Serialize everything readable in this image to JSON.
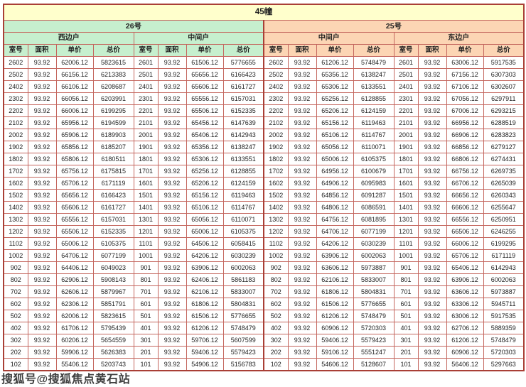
{
  "title": "45幢",
  "watermark": "搜狐号@搜狐焦点黄石站",
  "columns": [
    "室号",
    "面积",
    "单价",
    "总价"
  ],
  "sections": [
    {
      "label": "26号",
      "units": [
        "西边户",
        "中间户"
      ]
    },
    {
      "label": "25号",
      "units": [
        "中间户",
        "东边户"
      ]
    }
  ],
  "colors": {
    "title_bg": "#ffffcc",
    "left_section_bg": "#c6efce",
    "right_section_bg": "#fcd5b4",
    "border": "#c4665e",
    "outer_border": "#a93f36"
  },
  "area": "93.92",
  "rows": [
    [
      [
        "2602",
        "93.92",
        "62006.12",
        "5823615"
      ],
      [
        "2601",
        "93.92",
        "61506.12",
        "5776655"
      ],
      [
        "2602",
        "93.92",
        "61206.12",
        "5748479"
      ],
      [
        "2601",
        "93.92",
        "63006.12",
        "5917535"
      ]
    ],
    [
      [
        "2502",
        "93.92",
        "66156.12",
        "6213383"
      ],
      [
        "2501",
        "93.92",
        "65656.12",
        "6166423"
      ],
      [
        "2502",
        "93.92",
        "65356.12",
        "6138247"
      ],
      [
        "2501",
        "93.92",
        "67156.12",
        "6307303"
      ]
    ],
    [
      [
        "2402",
        "93.92",
        "66106.12",
        "6208687"
      ],
      [
        "2401",
        "93.92",
        "65606.12",
        "6161727"
      ],
      [
        "2402",
        "93.92",
        "65306.12",
        "6133551"
      ],
      [
        "2401",
        "93.92",
        "67106.12",
        "6302607"
      ]
    ],
    [
      [
        "2302",
        "93.92",
        "66056.12",
        "6203991"
      ],
      [
        "2301",
        "93.92",
        "65556.12",
        "6157031"
      ],
      [
        "2302",
        "93.92",
        "65256.12",
        "6128855"
      ],
      [
        "2301",
        "93.92",
        "67056.12",
        "6297911"
      ]
    ],
    [
      [
        "2202",
        "93.92",
        "66006.12",
        "6199295"
      ],
      [
        "2201",
        "93.92",
        "65506.12",
        "6152335"
      ],
      [
        "2202",
        "93.92",
        "65206.12",
        "6124159"
      ],
      [
        "2201",
        "93.92",
        "67006.12",
        "6293215"
      ]
    ],
    [
      [
        "2102",
        "93.92",
        "65956.12",
        "6194599"
      ],
      [
        "2101",
        "93.92",
        "65456.12",
        "6147639"
      ],
      [
        "2102",
        "93.92",
        "65156.12",
        "6119463"
      ],
      [
        "2101",
        "93.92",
        "66956.12",
        "6288519"
      ]
    ],
    [
      [
        "2002",
        "93.92",
        "65906.12",
        "6189903"
      ],
      [
        "2001",
        "93.92",
        "65406.12",
        "6142943"
      ],
      [
        "2002",
        "93.92",
        "65106.12",
        "6114767"
      ],
      [
        "2001",
        "93.92",
        "66906.12",
        "6283823"
      ]
    ],
    [
      [
        "1902",
        "93.92",
        "65856.12",
        "6185207"
      ],
      [
        "1901",
        "93.92",
        "65356.12",
        "6138247"
      ],
      [
        "1902",
        "93.92",
        "65056.12",
        "6110071"
      ],
      [
        "1901",
        "93.92",
        "66856.12",
        "6279127"
      ]
    ],
    [
      [
        "1802",
        "93.92",
        "65806.12",
        "6180511"
      ],
      [
        "1801",
        "93.92",
        "65306.12",
        "6133551"
      ],
      [
        "1802",
        "93.92",
        "65006.12",
        "6105375"
      ],
      [
        "1801",
        "93.92",
        "66806.12",
        "6274431"
      ]
    ],
    [
      [
        "1702",
        "93.92",
        "65756.12",
        "6175815"
      ],
      [
        "1701",
        "93.92",
        "65256.12",
        "6128855"
      ],
      [
        "1702",
        "93.92",
        "64956.12",
        "6100679"
      ],
      [
        "1701",
        "93.92",
        "66756.12",
        "6269735"
      ]
    ],
    [
      [
        "1602",
        "93.92",
        "65706.12",
        "6171119"
      ],
      [
        "1601",
        "93.92",
        "65206.12",
        "6124159"
      ],
      [
        "1602",
        "93.92",
        "64906.12",
        "6095983"
      ],
      [
        "1601",
        "93.92",
        "66706.12",
        "6265039"
      ]
    ],
    [
      [
        "1502",
        "93.92",
        "65656.12",
        "6166423"
      ],
      [
        "1501",
        "93.92",
        "65156.12",
        "6119463"
      ],
      [
        "1502",
        "93.92",
        "64856.12",
        "6091287"
      ],
      [
        "1501",
        "93.92",
        "66656.12",
        "6260343"
      ]
    ],
    [
      [
        "1402",
        "93.92",
        "65606.12",
        "6161727"
      ],
      [
        "1401",
        "93.92",
        "65106.12",
        "6114767"
      ],
      [
        "1402",
        "93.92",
        "64806.12",
        "6086591"
      ],
      [
        "1401",
        "93.92",
        "66606.12",
        "6255647"
      ]
    ],
    [
      [
        "1302",
        "93.92",
        "65556.12",
        "6157031"
      ],
      [
        "1301",
        "93.92",
        "65056.12",
        "6110071"
      ],
      [
        "1302",
        "93.92",
        "64756.12",
        "6081895"
      ],
      [
        "1301",
        "93.92",
        "66556.12",
        "6250951"
      ]
    ],
    [
      [
        "1202",
        "93.92",
        "65506.12",
        "6152335"
      ],
      [
        "1201",
        "93.92",
        "65006.12",
        "6105375"
      ],
      [
        "1202",
        "93.92",
        "64706.12",
        "6077199"
      ],
      [
        "1201",
        "93.92",
        "66506.12",
        "6246255"
      ]
    ],
    [
      [
        "1102",
        "93.92",
        "65006.12",
        "6105375"
      ],
      [
        "1101",
        "93.92",
        "64506.12",
        "6058415"
      ],
      [
        "1102",
        "93.92",
        "64206.12",
        "6030239"
      ],
      [
        "1101",
        "93.92",
        "66006.12",
        "6199295"
      ]
    ],
    [
      [
        "1002",
        "93.92",
        "64706.12",
        "6077199"
      ],
      [
        "1001",
        "93.92",
        "64206.12",
        "6030239"
      ],
      [
        "1002",
        "93.92",
        "63906.12",
        "6002063"
      ],
      [
        "1001",
        "93.92",
        "65706.12",
        "6171119"
      ]
    ],
    [
      [
        "902",
        "93.92",
        "64406.12",
        "6049023"
      ],
      [
        "901",
        "93.92",
        "63906.12",
        "6002063"
      ],
      [
        "902",
        "93.92",
        "63606.12",
        "5973887"
      ],
      [
        "901",
        "93.92",
        "65406.12",
        "6142943"
      ]
    ],
    [
      [
        "802",
        "93.92",
        "62906.12",
        "5908143"
      ],
      [
        "801",
        "93.92",
        "62406.12",
        "5861183"
      ],
      [
        "802",
        "93.92",
        "62106.12",
        "5833007"
      ],
      [
        "801",
        "93.92",
        "63906.12",
        "6002063"
      ]
    ],
    [
      [
        "702",
        "93.92",
        "62606.12",
        "5879967"
      ],
      [
        "701",
        "93.92",
        "62106.12",
        "5833007"
      ],
      [
        "702",
        "93.92",
        "61806.12",
        "5804831"
      ],
      [
        "701",
        "93.92",
        "63606.12",
        "5973887"
      ]
    ],
    [
      [
        "602",
        "93.92",
        "62306.12",
        "5851791"
      ],
      [
        "601",
        "93.92",
        "61806.12",
        "5804831"
      ],
      [
        "602",
        "93.92",
        "61506.12",
        "5776655"
      ],
      [
        "601",
        "93.92",
        "63306.12",
        "5945711"
      ]
    ],
    [
      [
        "502",
        "93.92",
        "62006.12",
        "5823615"
      ],
      [
        "501",
        "93.92",
        "61506.12",
        "5776655"
      ],
      [
        "502",
        "93.92",
        "61206.12",
        "5748479"
      ],
      [
        "501",
        "93.92",
        "63006.12",
        "5917535"
      ]
    ],
    [
      [
        "402",
        "93.92",
        "61706.12",
        "5795439"
      ],
      [
        "401",
        "93.92",
        "61206.12",
        "5748479"
      ],
      [
        "402",
        "93.92",
        "60906.12",
        "5720303"
      ],
      [
        "401",
        "93.92",
        "62706.12",
        "5889359"
      ]
    ],
    [
      [
        "302",
        "93.92",
        "60206.12",
        "5654559"
      ],
      [
        "301",
        "93.92",
        "59706.12",
        "5607599"
      ],
      [
        "302",
        "93.92",
        "59406.12",
        "5579423"
      ],
      [
        "301",
        "93.92",
        "61206.12",
        "5748479"
      ]
    ],
    [
      [
        "202",
        "93.92",
        "59906.12",
        "5626383"
      ],
      [
        "201",
        "93.92",
        "59406.12",
        "5579423"
      ],
      [
        "202",
        "93.92",
        "59106.12",
        "5551247"
      ],
      [
        "201",
        "93.92",
        "60906.12",
        "5720303"
      ]
    ],
    [
      [
        "102",
        "93.92",
        "55406.12",
        "5203743"
      ],
      [
        "101",
        "93.92",
        "54906.12",
        "5156783"
      ],
      [
        "102",
        "93.92",
        "54606.12",
        "5128607"
      ],
      [
        "101",
        "93.92",
        "56406.12",
        "5297663"
      ]
    ]
  ]
}
